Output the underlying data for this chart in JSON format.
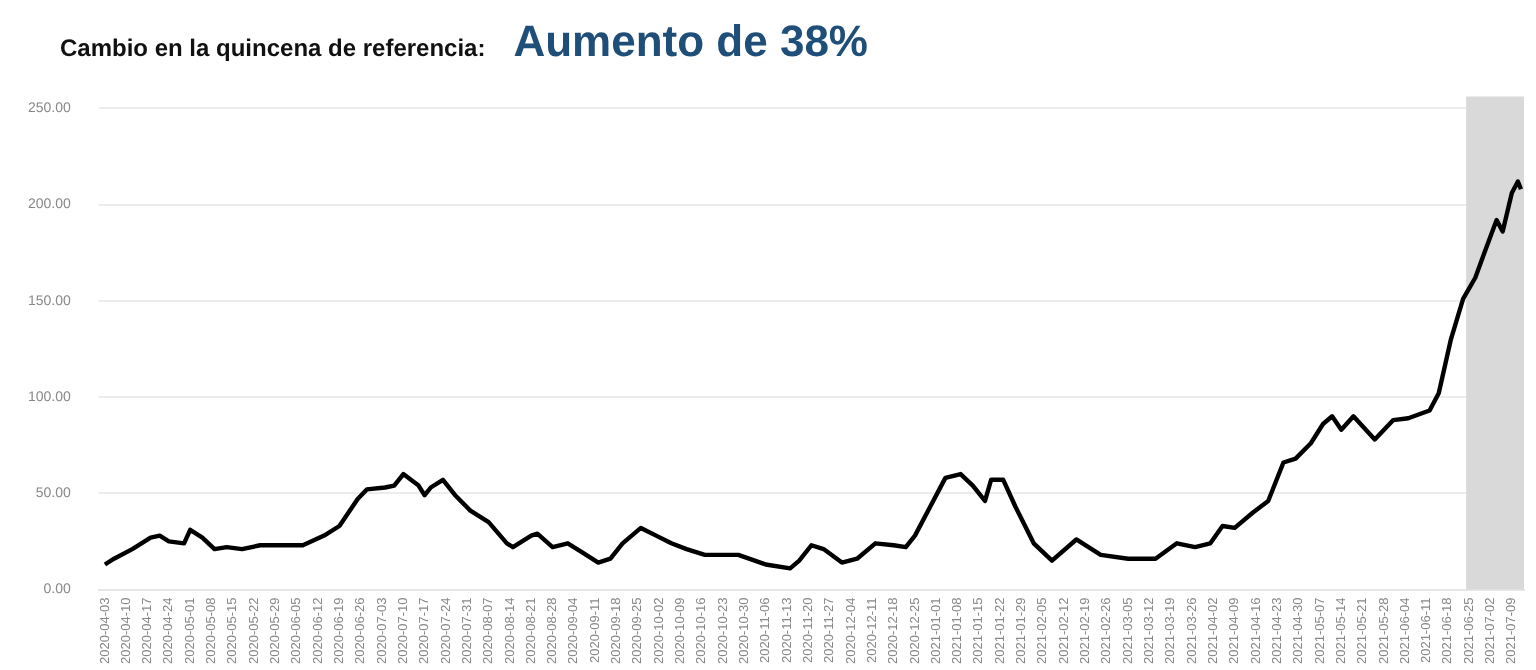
{
  "chart_data": {
    "type": "line",
    "title": "Cambio en la quincena de referencia:",
    "subtitle": "Aumento de 38%",
    "x": [
      "2020-04-03",
      "2020-04-06",
      "2020-04-12",
      "2020-04-18",
      "2020-04-21",
      "2020-04-24",
      "2020-04-29",
      "2020-05-01",
      "2020-05-05",
      "2020-05-09",
      "2020-05-13",
      "2020-05-18",
      "2020-05-24",
      "2020-06-02",
      "2020-06-07",
      "2020-06-14",
      "2020-06-19",
      "2020-06-25",
      "2020-06-28",
      "2020-07-04",
      "2020-07-07",
      "2020-07-10",
      "2020-07-15",
      "2020-07-17",
      "2020-07-19",
      "2020-07-23",
      "2020-07-27",
      "2020-08-01",
      "2020-08-07",
      "2020-08-13",
      "2020-08-15",
      "2020-08-21",
      "2020-08-23",
      "2020-08-28",
      "2020-09-02",
      "2020-09-07",
      "2020-09-12",
      "2020-09-16",
      "2020-09-20",
      "2020-09-26",
      "2020-10-01",
      "2020-10-06",
      "2020-10-11",
      "2020-10-17",
      "2020-10-28",
      "2020-11-06",
      "2020-11-14",
      "2020-11-17",
      "2020-11-21",
      "2020-11-25",
      "2020-12-01",
      "2020-12-06",
      "2020-12-12",
      "2020-12-18",
      "2020-12-22",
      "2020-12-25",
      "2021-01-04",
      "2021-01-09",
      "2021-01-13",
      "2021-01-17",
      "2021-01-19",
      "2021-01-23",
      "2021-01-27",
      "2021-02-02",
      "2021-02-08",
      "2021-02-16",
      "2021-02-24",
      "2021-03-05",
      "2021-03-14",
      "2021-03-21",
      "2021-03-27",
      "2021-04-01",
      "2021-04-05",
      "2021-04-09",
      "2021-04-15",
      "2021-04-20",
      "2021-04-25",
      "2021-04-29",
      "2021-05-04",
      "2021-05-08",
      "2021-05-11",
      "2021-05-14",
      "2021-05-18",
      "2021-05-25",
      "2021-05-31",
      "2021-06-05",
      "2021-06-12",
      "2021-06-15",
      "2021-06-19",
      "2021-06-23",
      "2021-06-27",
      "2021-06-30",
      "2021-07-04",
      "2021-07-06",
      "2021-07-09",
      "2021-07-11",
      "2021-07-12"
    ],
    "series": [
      {
        "color": "#000000",
        "values": [
          13,
          16,
          21,
          27,
          28,
          25,
          24,
          31,
          27,
          21,
          22,
          21,
          23,
          23,
          23,
          28,
          33,
          47,
          52,
          53,
          54,
          60,
          54,
          49,
          53,
          57,
          49,
          41,
          35,
          24,
          22,
          28,
          29,
          22,
          24,
          19,
          14,
          16,
          24,
          32,
          28,
          24,
          21,
          18,
          18,
          13,
          11,
          15,
          23,
          21,
          14,
          16,
          24,
          23,
          22,
          28,
          58,
          60,
          54,
          46,
          57,
          57,
          43,
          24,
          15,
          26,
          18,
          16,
          16,
          24,
          22,
          24,
          33,
          32,
          40,
          46,
          66,
          68,
          76,
          86,
          90,
          83,
          90,
          78,
          88,
          89,
          93,
          102,
          130,
          151,
          162,
          175,
          192,
          186,
          206,
          212,
          208
        ]
      }
    ],
    "xlim": [
      "2020-04-01",
      "2021-07-13"
    ],
    "xticks": [
      "2020-04-03",
      "2020-04-10",
      "2020-04-17",
      "2020-04-24",
      "2020-05-01",
      "2020-05-08",
      "2020-05-15",
      "2020-05-22",
      "2020-05-29",
      "2020-06-05",
      "2020-06-12",
      "2020-06-19",
      "2020-06-26",
      "2020-07-03",
      "2020-07-10",
      "2020-07-17",
      "2020-07-24",
      "2020-07-31",
      "2020-08-07",
      "2020-08-14",
      "2020-08-21",
      "2020-08-28",
      "2020-09-04",
      "2020-09-11",
      "2020-09-18",
      "2020-09-25",
      "2020-10-02",
      "2020-10-09",
      "2020-10-16",
      "2020-10-23",
      "2020-10-30",
      "2020-11-06",
      "2020-11-13",
      "2020-11-20",
      "2020-11-27",
      "2020-12-04",
      "2020-12-11",
      "2020-12-18",
      "2020-12-25",
      "2021-01-01",
      "2021-01-08",
      "2021-01-15",
      "2021-01-22",
      "2021-01-29",
      "2021-02-05",
      "2021-02-12",
      "2021-02-19",
      "2021-02-26",
      "2021-03-05",
      "2021-03-12",
      "2021-03-19",
      "2021-03-26",
      "2021-04-02",
      "2021-04-09",
      "2021-04-16",
      "2021-04-23",
      "2021-04-30",
      "2021-05-07",
      "2021-05-14",
      "2021-05-21",
      "2021-05-28",
      "2021-06-04",
      "2021-06-11",
      "2021-06-18",
      "2021-06-25",
      "2021-07-02",
      "2021-07-09"
    ],
    "ylim": [
      0,
      250
    ],
    "yticks": [
      {
        "value": 0,
        "label": "0.00"
      },
      {
        "value": 50,
        "label": "50.00"
      },
      {
        "value": 100,
        "label": "100.00"
      },
      {
        "value": 150,
        "label": "150.00"
      },
      {
        "value": 200,
        "label": "200.00"
      },
      {
        "value": 250,
        "label": "250.00"
      }
    ],
    "bands": [
      {
        "axis": "x",
        "from": "2021-06-24",
        "to": "2021-07-13",
        "color": "#d9d9d9"
      }
    ],
    "grid": "y",
    "legend": false,
    "marker": "none",
    "line_style": "solid"
  }
}
